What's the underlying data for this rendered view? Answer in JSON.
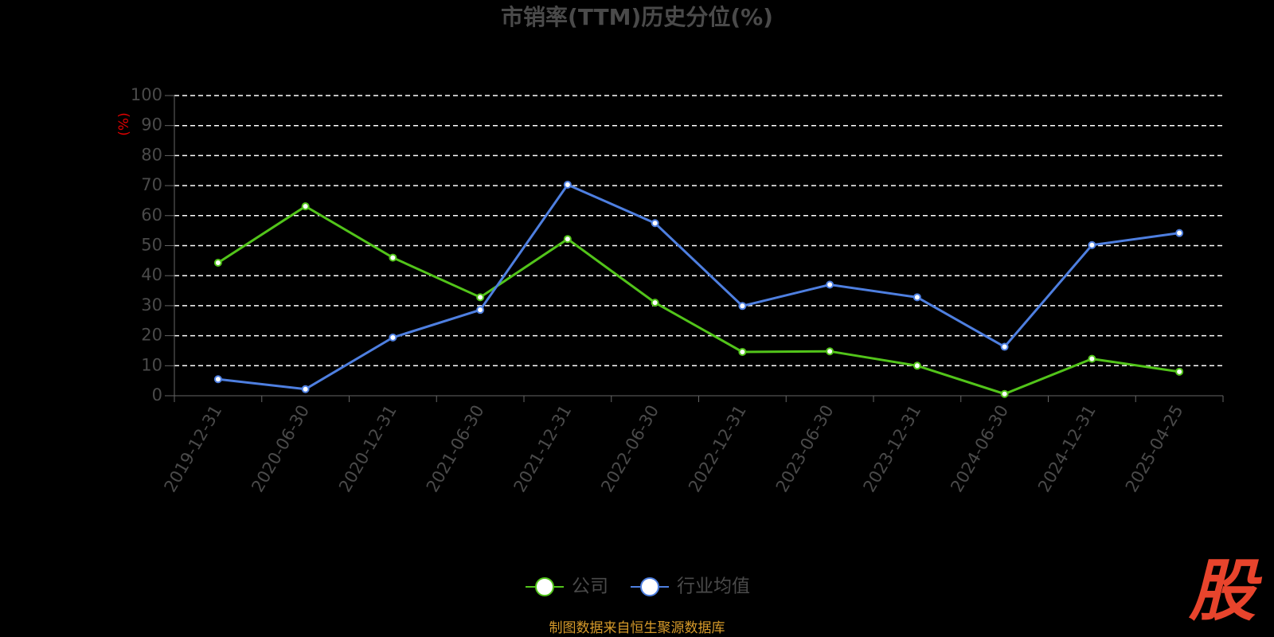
{
  "chart_data": {
    "type": "line",
    "title": "市销率(TTM)历史分位(%)",
    "y_label": "(%)",
    "categories": [
      "2019-12-31",
      "2020-06-30",
      "2020-12-31",
      "2021-06-30",
      "2021-12-31",
      "2022-06-30",
      "2022-12-31",
      "2023-06-30",
      "2023-12-31",
      "2024-06-30",
      "2024-12-31",
      "2025-04-25"
    ],
    "series": [
      {
        "name": "公司",
        "color": "#52c41a",
        "values": [
          44.3,
          63.1,
          46.0,
          32.8,
          52.2,
          31.0,
          14.6,
          14.8,
          10.0,
          0.6,
          12.3,
          8.0
        ]
      },
      {
        "name": "行业均值",
        "color": "#4e7fe0",
        "values": [
          5.5,
          2.2,
          19.4,
          28.6,
          70.3,
          57.5,
          29.9,
          37.0,
          32.8,
          16.3,
          50.2,
          54.2
        ]
      }
    ],
    "ylim": [
      0,
      100
    ],
    "yticks": [
      0,
      10,
      20,
      30,
      40,
      50,
      60,
      70,
      80,
      90,
      100
    ],
    "grid": true,
    "footer": "制图数据来自恒生聚源数据库",
    "watermark": "股"
  }
}
